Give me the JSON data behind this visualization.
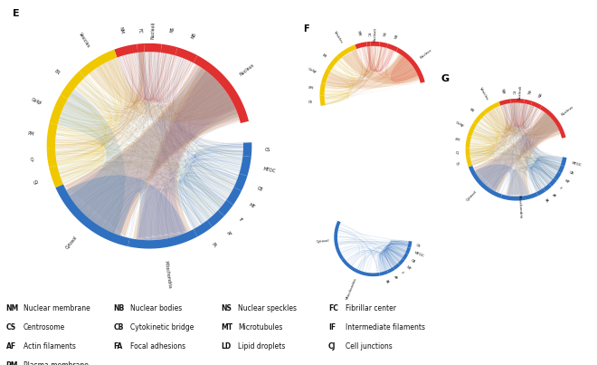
{
  "bg_color": "#FFFFFF",
  "text_color": "#000000",
  "colors": {
    "red": "#E03030",
    "yellow": "#F0C800",
    "blue": "#3070C0",
    "green": "#50A050",
    "orange": "#D06020",
    "purple": "#8060A0"
  },
  "segs_E": [
    {
      "name": "NM",
      "a0": 97,
      "a1": 110,
      "color": "#E03030",
      "lw": 1
    },
    {
      "name": "Vesicles",
      "a0": 110,
      "a1": 133,
      "color": "#F0C800",
      "lw": 1
    },
    {
      "name": "ER",
      "a0": 133,
      "a1": 150,
      "color": "#F0C800",
      "lw": 1
    },
    {
      "name": "Golgi",
      "a0": 150,
      "a1": 167,
      "color": "#F0C800",
      "lw": 1
    },
    {
      "name": "PM",
      "a0": 167,
      "a1": 181,
      "color": "#F0C800",
      "lw": 1
    },
    {
      "name": "CJ",
      "a0": 181,
      "a1": 192,
      "color": "#F0C800",
      "lw": 1
    },
    {
      "name": "LD",
      "a0": 192,
      "a1": 204,
      "color": "#F0C800",
      "lw": 1
    },
    {
      "name": "Cytosol",
      "a0": 204,
      "a1": 258,
      "color": "#3070C0",
      "lw": 1
    },
    {
      "name": "Mitochondria",
      "a0": 258,
      "a1": 298,
      "color": "#3070C0",
      "lw": 1
    },
    {
      "name": "FA",
      "a0": 298,
      "a1": 308,
      "color": "#3070C0",
      "lw": 1
    },
    {
      "name": "AF",
      "a0": 308,
      "a1": 317,
      "color": "#3070C0",
      "lw": 1
    },
    {
      "name": "IF",
      "a0": 317,
      "a1": 325,
      "color": "#3070C0",
      "lw": 1
    },
    {
      "name": "MT",
      "a0": 325,
      "a1": 334,
      "color": "#3070C0",
      "lw": 1
    },
    {
      "name": "CB",
      "a0": 334,
      "a1": 343,
      "color": "#3070C0",
      "lw": 1
    },
    {
      "name": "MTOC",
      "a0": 343,
      "a1": 354,
      "color": "#3070C0",
      "lw": 1
    },
    {
      "name": "CS",
      "a0": 354,
      "a1": 362,
      "color": "#3070C0",
      "lw": 1
    },
    {
      "name": "Nucleus",
      "a0": 14,
      "a1": 62,
      "color": "#E03030",
      "lw": 1
    },
    {
      "name": "NB",
      "a0": 62,
      "a1": 74,
      "color": "#E03030",
      "lw": 1
    },
    {
      "name": "NS",
      "a0": 74,
      "a1": 83,
      "color": "#E03030",
      "lw": 1
    },
    {
      "name": "Nucleoli",
      "a0": 83,
      "a1": 93,
      "color": "#E03030",
      "lw": 1
    },
    {
      "name": "FC",
      "a0": 93,
      "a1": 97,
      "color": "#E03030",
      "lw": 1
    }
  ],
  "segs_F": [
    {
      "name": "NM",
      "a0": 97,
      "a1": 110,
      "color": "#E03030"
    },
    {
      "name": "Vesicles",
      "a0": 110,
      "a1": 133,
      "color": "#F0C800"
    },
    {
      "name": "ER",
      "a0": 133,
      "a1": 150,
      "color": "#F0C800"
    },
    {
      "name": "Golgi",
      "a0": 150,
      "a1": 167,
      "color": "#F0C800"
    },
    {
      "name": "PM",
      "a0": 167,
      "a1": 181,
      "color": "#F0C800"
    },
    {
      "name": "CS",
      "a0": 181,
      "a1": 192,
      "color": "#F0C800"
    },
    {
      "name": "Nucleus",
      "a0": 14,
      "a1": 62,
      "color": "#E03030"
    },
    {
      "name": "NB",
      "a0": 62,
      "a1": 74,
      "color": "#E03030"
    },
    {
      "name": "NS",
      "a0": 74,
      "a1": 83,
      "color": "#E03030"
    },
    {
      "name": "Nucleoli",
      "a0": 83,
      "a1": 93,
      "color": "#E03030"
    },
    {
      "name": "FC",
      "a0": 93,
      "a1": 97,
      "color": "#E03030"
    }
  ],
  "segs_F2": [
    {
      "name": "Cytosol",
      "a0": 155,
      "a1": 215,
      "color": "#3070C0"
    },
    {
      "name": "Mitochondria",
      "a0": 215,
      "a1": 280,
      "color": "#3070C0"
    },
    {
      "name": "FA",
      "a0": 280,
      "a1": 293,
      "color": "#3070C0"
    },
    {
      "name": "AF",
      "a0": 293,
      "a1": 304,
      "color": "#3070C0"
    },
    {
      "name": "IF",
      "a0": 304,
      "a1": 314,
      "color": "#3070C0"
    },
    {
      "name": "MT",
      "a0": 314,
      "a1": 324,
      "color": "#3070C0"
    },
    {
      "name": "CB",
      "a0": 324,
      "a1": 334,
      "color": "#3070C0"
    },
    {
      "name": "MTOC",
      "a0": 334,
      "a1": 344,
      "color": "#3070C0"
    },
    {
      "name": "CS",
      "a0": 344,
      "a1": 354,
      "color": "#3070C0"
    }
  ],
  "segs_G": [
    {
      "name": "NM",
      "a0": 97,
      "a1": 110,
      "color": "#E03030"
    },
    {
      "name": "Vesicles",
      "a0": 110,
      "a1": 130,
      "color": "#F0C800"
    },
    {
      "name": "ER",
      "a0": 130,
      "a1": 148,
      "color": "#F0C800"
    },
    {
      "name": "Golgi",
      "a0": 148,
      "a1": 164,
      "color": "#F0C800"
    },
    {
      "name": "PM",
      "a0": 164,
      "a1": 178,
      "color": "#F0C800"
    },
    {
      "name": "CJ",
      "a0": 178,
      "a1": 188,
      "color": "#F0C800"
    },
    {
      "name": "G*",
      "a0": 188,
      "a1": 200,
      "color": "#F0C800"
    },
    {
      "name": "Cytosol",
      "a0": 200,
      "a1": 252,
      "color": "#3070C0"
    },
    {
      "name": "Mitochondria",
      "a0": 252,
      "a1": 295,
      "color": "#3070C0"
    },
    {
      "name": "FA",
      "a0": 295,
      "a1": 305,
      "color": "#3070C0"
    },
    {
      "name": "AF",
      "a0": 305,
      "a1": 314,
      "color": "#3070C0"
    },
    {
      "name": "IF",
      "a0": 314,
      "a1": 323,
      "color": "#3070C0"
    },
    {
      "name": "MT",
      "a0": 323,
      "a1": 332,
      "color": "#3070C0"
    },
    {
      "name": "CB",
      "a0": 332,
      "a1": 341,
      "color": "#3070C0"
    },
    {
      "name": "MTOC",
      "a0": 341,
      "a1": 351,
      "color": "#3070C0"
    },
    {
      "name": "Nucleus",
      "a0": 14,
      "a1": 60,
      "color": "#E03030"
    },
    {
      "name": "NB",
      "a0": 60,
      "a1": 72,
      "color": "#E03030"
    },
    {
      "name": "NS",
      "a0": 72,
      "a1": 81,
      "color": "#E03030"
    },
    {
      "name": "Nucleoli",
      "a0": 81,
      "a1": 91,
      "color": "#E03030"
    },
    {
      "name": "FC",
      "a0": 91,
      "a1": 97,
      "color": "#E03030"
    }
  ],
  "legend": [
    [
      [
        "NM",
        "Nuclear membrane"
      ],
      [
        "NB",
        "Nuclear bodies"
      ],
      [
        "NS",
        "Nuclear speckles"
      ],
      [
        "FC",
        "Fibrillar center"
      ]
    ],
    [
      [
        "CS",
        "Centrosome"
      ],
      [
        "CB",
        "Cytokinetic bridge"
      ],
      [
        "MT",
        "Microtubules"
      ],
      [
        "IF",
        "Intermediate filaments"
      ]
    ],
    [
      [
        "AF",
        "Actin filaments"
      ],
      [
        "FA",
        "Focal adhesions"
      ],
      [
        "LD",
        "Lipid droplets"
      ],
      [
        "CJ",
        "Cell junctions"
      ]
    ],
    [
      [
        "PM",
        "Plasma membrane"
      ],
      [
        "",
        ""
      ],
      [
        "",
        ""
      ],
      [
        "",
        ""
      ]
    ]
  ]
}
